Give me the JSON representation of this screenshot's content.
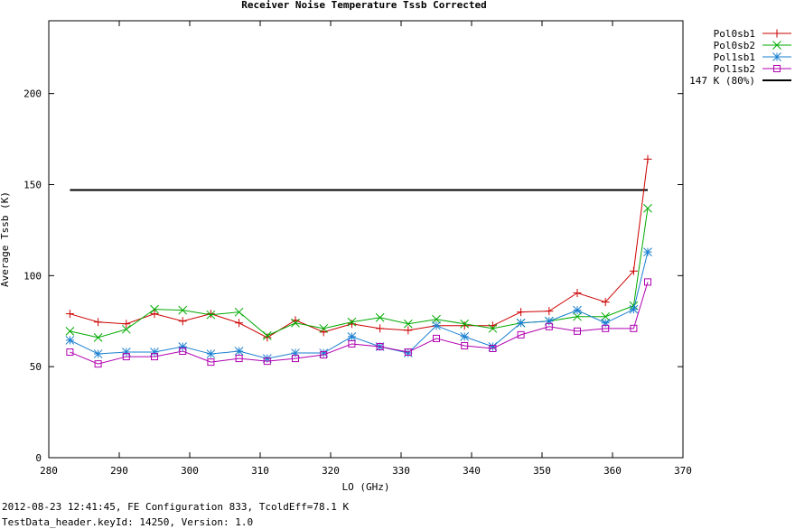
{
  "chart_data": {
    "type": "line",
    "title": "Receiver Noise Temperature Tssb Corrected",
    "xlabel": "LO (GHz)",
    "ylabel": "Average Tssb (K)",
    "xlim": [
      280,
      370
    ],
    "ylim": [
      0,
      240
    ],
    "xticks": [
      280,
      290,
      300,
      310,
      320,
      330,
      340,
      350,
      360,
      370
    ],
    "yticks": [
      0,
      50,
      100,
      150,
      200
    ],
    "x": [
      283,
      287,
      291,
      295,
      299,
      303,
      307,
      311,
      315,
      319,
      323,
      327,
      331,
      335,
      339,
      343,
      347,
      351,
      355,
      359,
      363,
      365
    ],
    "series": [
      {
        "name": "Pol0sb1",
        "color": "#cc0000",
        "marker": "plus",
        "values": [
          79,
          74.5,
          73.5,
          79,
          75,
          79,
          74,
          66,
          75.5,
          69,
          73.5,
          71,
          70,
          72.5,
          72.5,
          72.5,
          80,
          80.5,
          90.5,
          85.5,
          102.5,
          164
        ]
      },
      {
        "name": "Pol0sb2",
        "color": "#00aa00",
        "marker": "cross",
        "values": [
          69.5,
          66,
          70.5,
          81.5,
          81,
          78.5,
          80,
          67,
          74,
          71,
          74.5,
          77,
          73.5,
          76,
          73.5,
          71,
          74,
          75,
          77.5,
          77.5,
          83.5,
          137
        ]
      },
      {
        "name": "Pol1sb1",
        "color": "#1a7fd0",
        "marker": "star",
        "values": [
          64.5,
          57,
          58,
          58,
          61,
          57,
          58.5,
          54.5,
          57.5,
          57.5,
          66.5,
          61,
          57.5,
          72.5,
          66.5,
          61,
          74,
          75,
          81,
          74,
          81.5,
          113
        ]
      },
      {
        "name": "Pol1sb2",
        "color": "#b000b0",
        "marker": "square",
        "values": [
          58,
          51.5,
          55.5,
          55.5,
          58.5,
          52.5,
          54.5,
          53,
          54.5,
          56.5,
          62.5,
          61,
          58,
          65.5,
          61.5,
          60,
          67.5,
          72,
          69.5,
          71,
          71,
          96.5
        ]
      }
    ],
    "reference_line": {
      "label": "147 K (80%)",
      "value": 147,
      "x_range": [
        283,
        365
      ],
      "color": "#000000"
    },
    "legend": "top-right",
    "grid": false
  },
  "footer": {
    "line1": "2012-08-23 12:41:45, FE Configuration 833, TcoldEff=78.1 K",
    "line2": "TestData_header.keyId: 14250, Version: 1.0"
  }
}
